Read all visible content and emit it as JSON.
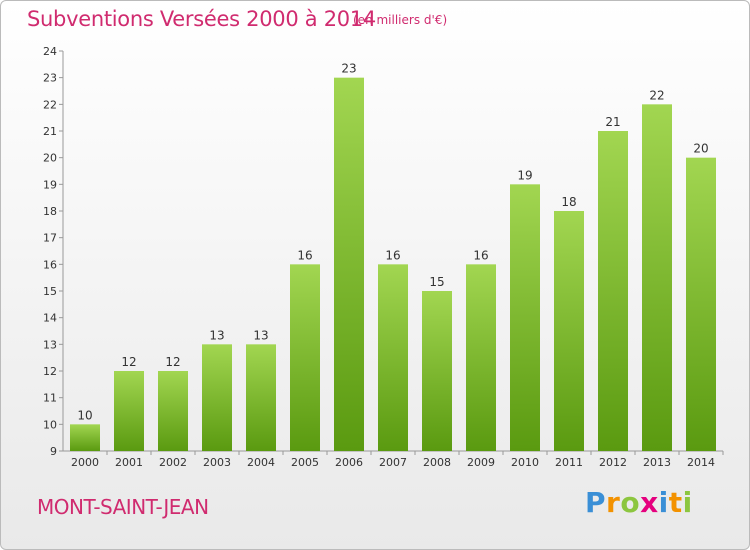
{
  "chart_data": {
    "type": "bar",
    "title": "Subventions Versées 2000 à 2014",
    "unit_note": "(en milliers d'€)",
    "categories": [
      "2000",
      "2001",
      "2002",
      "2003",
      "2004",
      "2005",
      "2006",
      "2007",
      "2008",
      "2009",
      "2010",
      "2011",
      "2012",
      "2013",
      "2014"
    ],
    "values": [
      10,
      12,
      12,
      13,
      13,
      16,
      23,
      16,
      15,
      16,
      19,
      18,
      21,
      22,
      20
    ],
    "data_labels": [
      "10",
      "12",
      "12",
      "13",
      "13",
      "16",
      "23",
      "16",
      "15",
      "16",
      "19",
      "18",
      "21",
      "22",
      "20"
    ],
    "y_ticks": [
      "9",
      "10",
      "11",
      "12",
      "13",
      "14",
      "15",
      "16",
      "17",
      "18",
      "19",
      "20",
      "21",
      "22",
      "23",
      "24"
    ],
    "ylim": [
      9,
      24
    ],
    "grid": false,
    "xlabel": "",
    "ylabel": "",
    "bar_color": "#7dc232"
  },
  "footer": {
    "place_name": "MONT-SAINT-JEAN",
    "logo_text": "Proxiti",
    "logo_letters": [
      {
        "ch": "P",
        "color": "#3a8fd6"
      },
      {
        "ch": "r",
        "color": "#f39200"
      },
      {
        "ch": "o",
        "color": "#8cc63f"
      },
      {
        "ch": "x",
        "color": "#e5007e"
      },
      {
        "ch": "i",
        "color": "#3a8fd6"
      },
      {
        "ch": "t",
        "color": "#f39200"
      },
      {
        "ch": "i",
        "color": "#8cc63f"
      }
    ]
  }
}
